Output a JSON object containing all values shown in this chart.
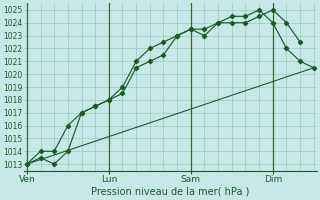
{
  "xlabel": "Pression niveau de la mer( hPa )",
  "bg_color": "#c8e8e8",
  "grid_color": "#99ccbb",
  "line_color": "#1a5c28",
  "vline_color": "#336633",
  "ylim": [
    1012.5,
    1025.5
  ],
  "yticks": [
    1013,
    1014,
    1015,
    1016,
    1017,
    1018,
    1019,
    1020,
    1021,
    1022,
    1023,
    1024,
    1025
  ],
  "xtick_labels": [
    "Ven",
    "Lun",
    "Sam",
    "Dim"
  ],
  "xtick_positions": [
    0,
    3,
    6,
    9
  ],
  "xlim": [
    -0.1,
    10.6
  ],
  "series1_x": [
    0,
    0.5,
    1.0,
    1.5,
    2.0,
    2.5,
    3.0,
    3.5,
    4.0,
    4.5,
    5.0,
    5.5,
    6.0,
    6.5,
    7.0,
    7.5,
    8.0,
    8.5,
    9.0,
    9.5,
    10.0
  ],
  "series1_y": [
    1013,
    1014,
    1014,
    1016,
    1017,
    1017.5,
    1018,
    1018.5,
    1020.5,
    1021,
    1021.5,
    1023,
    1023.5,
    1023,
    1024,
    1024,
    1024,
    1024.5,
    1025,
    1024,
    1022.5
  ],
  "series2_x": [
    0,
    0.5,
    1.0,
    1.5,
    2.0,
    2.5,
    3.0,
    3.5,
    4.0,
    4.5,
    5.0,
    5.5,
    6.0,
    6.5,
    7.0,
    7.5,
    8.0,
    8.5,
    9.0,
    9.5,
    10.0,
    10.5
  ],
  "series2_y": [
    1013,
    1013.5,
    1013,
    1014,
    1017,
    1017.5,
    1018,
    1019,
    1021,
    1022,
    1022.5,
    1023,
    1023.5,
    1023.5,
    1024,
    1024.5,
    1024.5,
    1025,
    1024,
    1022,
    1021,
    1020.5
  ],
  "series3_x": [
    0,
    10.5
  ],
  "series3_y": [
    1013,
    1020.5
  ],
  "vlines_x": [
    0,
    3,
    6,
    9
  ],
  "figsize": [
    3.2,
    2.0
  ],
  "dpi": 100,
  "ylabel_fontsize": 5.5,
  "xlabel_fontsize": 7.0,
  "xtick_fontsize": 6.5
}
